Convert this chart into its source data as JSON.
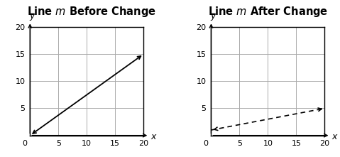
{
  "title_left": "Line $m$ Before Change",
  "title_right": "Line $m$ After Change",
  "xlabel": "x",
  "ylabel": "y",
  "xlim": [
    -0.5,
    21.5
  ],
  "ylim": [
    -0.5,
    21.5
  ],
  "grid_xmin": 0,
  "grid_xmax": 20,
  "grid_ymin": 0,
  "grid_ymax": 20,
  "xticks": [
    5,
    10,
    15,
    20
  ],
  "yticks": [
    5,
    10,
    15,
    20
  ],
  "grid_color": "#aaaaaa",
  "line_color": "#000000",
  "left_line_x": [
    0,
    20
  ],
  "left_line_y": [
    0,
    15
  ],
  "right_line_x": [
    0,
    20
  ],
  "right_line_y": [
    1,
    5
  ],
  "title_fontsize": 10.5,
  "axis_label_fontsize": 9,
  "tick_fontsize": 8,
  "background_color": "#ffffff"
}
